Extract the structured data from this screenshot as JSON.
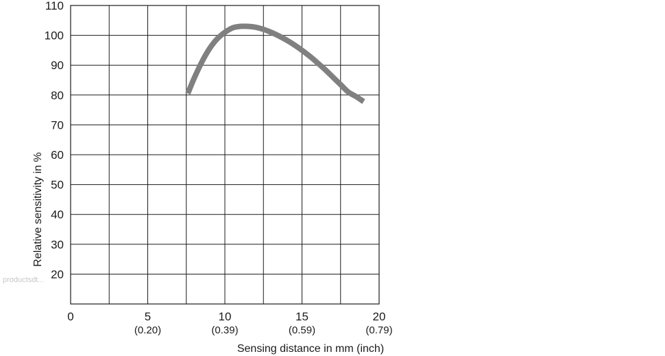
{
  "chart_data": {
    "type": "line",
    "title": "",
    "xlabel": "Sensing distance in mm (inch)",
    "ylabel": "Relative sensitivity in %",
    "xlim": [
      0,
      20
    ],
    "ylim": [
      10,
      110
    ],
    "x_ticks": [
      {
        "value": 0,
        "label": "0",
        "sub": ""
      },
      {
        "value": 5,
        "label": "5",
        "sub": "(0.20)"
      },
      {
        "value": 10,
        "label": "10",
        "sub": "(0.39)"
      },
      {
        "value": 15,
        "label": "15",
        "sub": "(0.59)"
      },
      {
        "value": 20,
        "label": "20",
        "sub": "(0.79)"
      }
    ],
    "y_ticks": [
      {
        "value": 110,
        "label": "110"
      },
      {
        "value": 100,
        "label": "100"
      },
      {
        "value": 90,
        "label": "90"
      },
      {
        "value": 80,
        "label": "80"
      },
      {
        "value": 70,
        "label": "70"
      },
      {
        "value": 60,
        "label": "60"
      },
      {
        "value": 50,
        "label": "50"
      },
      {
        "value": 40,
        "label": "40"
      },
      {
        "value": 30,
        "label": "30"
      },
      {
        "value": 20,
        "label": "20"
      }
    ],
    "grid": true,
    "grid_x": [
      2.5,
      5,
      7.5,
      10,
      12.5,
      15,
      17.5
    ],
    "grid_y": [
      20,
      30,
      40,
      50,
      60,
      70,
      80,
      90,
      100
    ],
    "series": [
      {
        "color": "#808080",
        "x": [
          7.6,
          8.0,
          8.5,
          9.0,
          9.5,
          10.0,
          10.5,
          11.0,
          11.5,
          12.0,
          12.5,
          13.0,
          13.5,
          14.0,
          14.5,
          15.0,
          15.5,
          16.0,
          16.5,
          17.0,
          17.5,
          18.0,
          18.5,
          19.0
        ],
        "y": [
          80.5,
          85.5,
          91.0,
          95.5,
          98.8,
          101.0,
          102.5,
          103.0,
          103.0,
          102.7,
          102.0,
          101.0,
          99.8,
          98.4,
          96.8,
          95.0,
          93.0,
          90.8,
          88.5,
          86.0,
          83.5,
          81.0,
          79.5,
          77.8
        ]
      }
    ]
  },
  "watermark": "productsdt..."
}
